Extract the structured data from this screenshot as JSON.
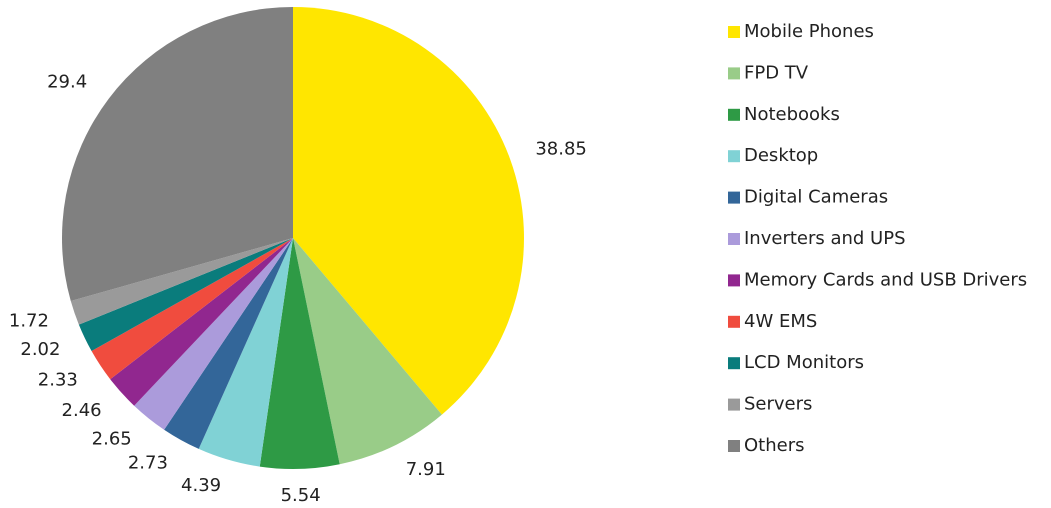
{
  "chart_data": {
    "type": "pie",
    "categories": [
      "Mobile Phones",
      "FPD TV",
      "Notebooks",
      "Desktop",
      "Digital Cameras",
      "Inverters and UPS",
      "Memory Cards and USB Drivers",
      "4W EMS",
      "LCD Monitors",
      "Servers",
      "Others"
    ],
    "values": [
      38.85,
      7.91,
      5.54,
      4.39,
      2.73,
      2.65,
      2.46,
      2.33,
      2.02,
      1.72,
      29.4
    ],
    "colors": [
      "#FFE600",
      "#99CC88",
      "#2E9A45",
      "#80D2D5",
      "#336699",
      "#AB9BDB",
      "#91278F",
      "#F04C3E",
      "#0A7C7C",
      "#9A9A9A",
      "#808080"
    ],
    "legend": "right"
  }
}
